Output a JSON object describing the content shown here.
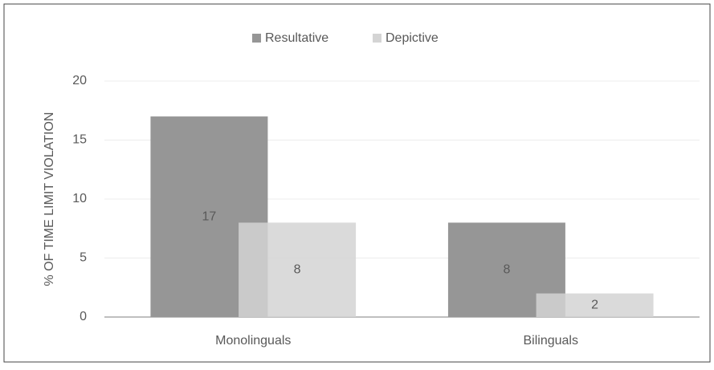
{
  "chart_data": {
    "type": "bar",
    "y_label": "% OF TIME LIMIT VIOLATION",
    "categories": [
      "Monolinguals",
      "Bilinguals"
    ],
    "series": [
      {
        "name": "Resultative",
        "color": "#969696",
        "values": [
          17,
          8
        ]
      },
      {
        "name": "Depictive",
        "color": "#d4d4d4",
        "values": [
          8,
          2
        ]
      }
    ],
    "ylim": [
      0,
      20
    ],
    "yticks": [
      0,
      5,
      10,
      15,
      20
    ],
    "grid": true,
    "legend": "top"
  }
}
